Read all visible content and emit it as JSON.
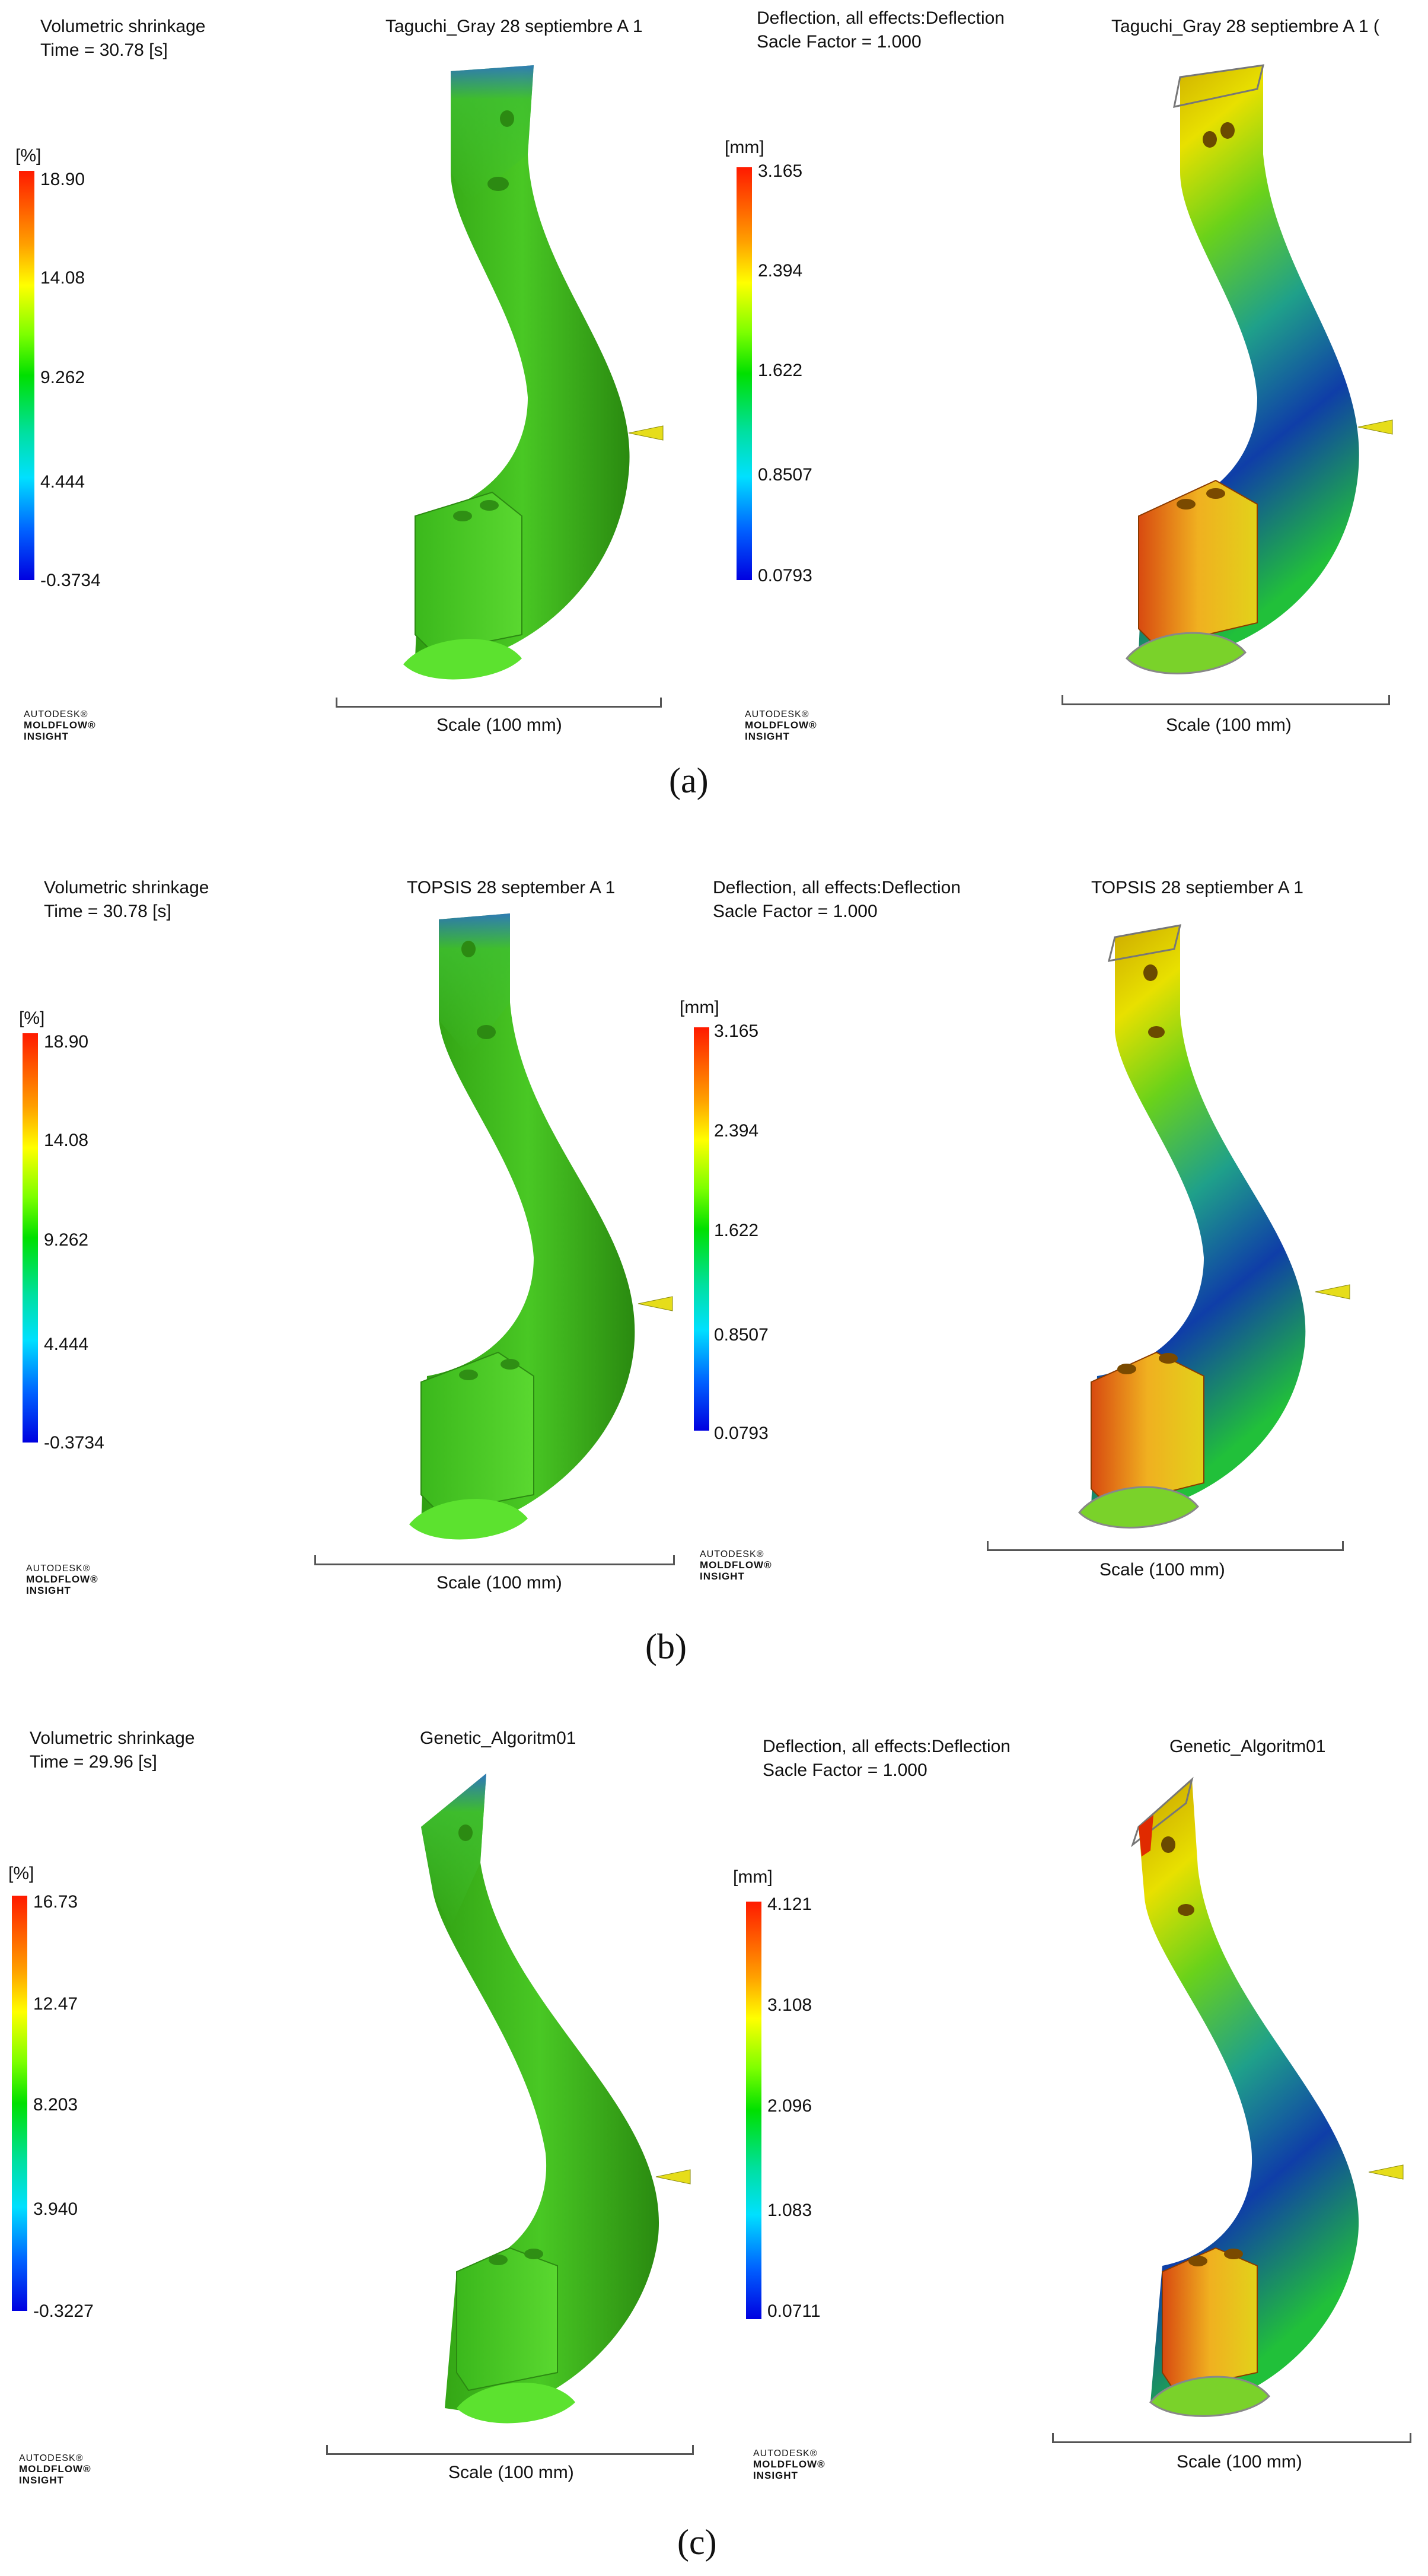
{
  "rows": [
    {
      "caption": "(a)",
      "left": {
        "title1": "Volumetric shrinkage",
        "title2": "Time = 30.78 [s]",
        "model": "Taguchi_Gray 28 septiembre A 1",
        "unit": "[%]",
        "ticks": [
          "18.90",
          "14.08",
          "9.262",
          "4.444",
          "-0.3734"
        ],
        "logo1": "AUTODESK®",
        "logo2": "MOLDFLOW® INSIGHT",
        "scale": "Scale (100 mm)"
      },
      "right": {
        "title1": "Deflection, all effects:Deflection",
        "title2": "Sacle Factor = 1.000",
        "model": "Taguchi_Gray 28 septiembre A 1 (",
        "unit": "[mm]",
        "ticks": [
          "3.165",
          "2.394",
          "1.622",
          "0.8507",
          "0.0793"
        ],
        "logo1": "AUTODESK®",
        "logo2": "MOLDFLOW® INSIGHT",
        "scale": "Scale (100 mm)"
      }
    },
    {
      "caption": "(b)",
      "left": {
        "title1": "Volumetric shrinkage",
        "title2": "Time = 30.78 [s]",
        "model": "TOPSIS 28 september A 1",
        "unit": "[%]",
        "ticks": [
          "18.90",
          "14.08",
          "9.262",
          "4.444",
          "-0.3734"
        ],
        "logo1": "AUTODESK®",
        "logo2": "MOLDFLOW® INSIGHT",
        "scale": "Scale (100 mm)"
      },
      "right": {
        "title1": "Deflection, all effects:Deflection",
        "title2": "Sacle Factor = 1.000",
        "model": "TOPSIS 28 septiember A 1",
        "unit": "[mm]",
        "ticks": [
          "3.165",
          "2.394",
          "1.622",
          "0.8507",
          "0.0793"
        ],
        "logo1": "AUTODESK®",
        "logo2": "MOLDFLOW® INSIGHT",
        "scale": "Scale (100 mm)"
      }
    },
    {
      "caption": "(c)",
      "left": {
        "title1": "Volumetric shrinkage",
        "title2": "Time = 29.96 [s]",
        "model": "Genetic_Algoritm01",
        "unit": "[%]",
        "ticks": [
          "16.73",
          "12.47",
          "8.203",
          "3.940",
          "-0.3227"
        ],
        "logo1": "AUTODESK®",
        "logo2": "MOLDFLOW® INSIGHT",
        "scale": "Scale (100 mm)"
      },
      "right": {
        "title1": "Deflection, all effects:Deflection",
        "title2": "Sacle Factor = 1.000",
        "model": "Genetic_Algoritm01",
        "unit": "[mm]",
        "ticks": [
          "4.121",
          "3.108",
          "2.096",
          "1.083",
          "0.0711"
        ],
        "logo1": "AUTODESK®",
        "logo2": "MOLDFLOW® INSIGHT",
        "scale": "Scale (100 mm)"
      }
    }
  ],
  "colors": {
    "shrinkage_part": "#3fc21e",
    "deflection_high": "#ff2a00",
    "deflection_mid": "#ffe000",
    "deflection_low": "#0b2fa0",
    "gate_marker": "#e6dd1a"
  }
}
